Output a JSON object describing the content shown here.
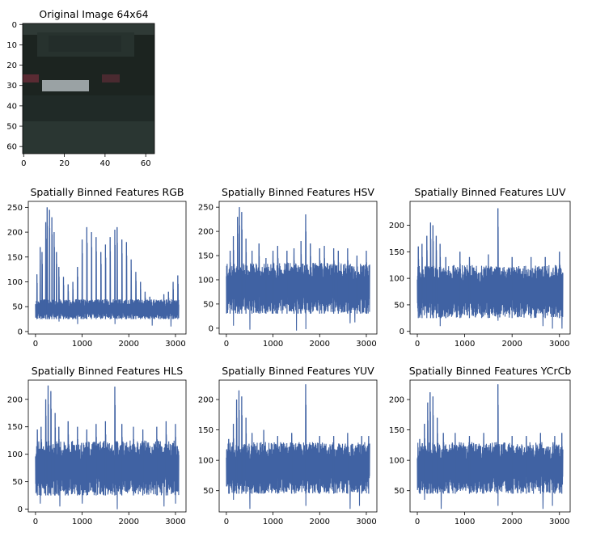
{
  "figure": {
    "image_panel": {
      "title": "Original Image 64x64",
      "xticks": [
        "0",
        "20",
        "40",
        "60"
      ],
      "yticks": [
        "0",
        "10",
        "20",
        "30",
        "40",
        "50",
        "60"
      ],
      "colors": {
        "dark": "#1c2420",
        "mid": "#2a3632",
        "light_plate": "#9aa2a4",
        "tail": "#5a2b33"
      }
    },
    "series_color": "#4062a3"
  },
  "chart_data": [
    {
      "type": "line",
      "title": "Spatially Binned Features RGB",
      "x_range": [
        0,
        3072
      ],
      "ylim": [
        -5,
        262
      ],
      "xticks": [
        0,
        1000,
        2000,
        3000
      ],
      "yticks": [
        0,
        50,
        100,
        150,
        200,
        250
      ],
      "band": {
        "low": 25,
        "high": 65
      },
      "spikes": [
        {
          "x": 30,
          "y": 115
        },
        {
          "x": 100,
          "y": 170
        },
        {
          "x": 140,
          "y": 160
        },
        {
          "x": 220,
          "y": 220
        },
        {
          "x": 250,
          "y": 250
        },
        {
          "x": 300,
          "y": 245
        },
        {
          "x": 350,
          "y": 230
        },
        {
          "x": 400,
          "y": 200
        },
        {
          "x": 450,
          "y": 160
        },
        {
          "x": 500,
          "y": 130
        },
        {
          "x": 600,
          "y": 110
        },
        {
          "x": 700,
          "y": 95
        },
        {
          "x": 800,
          "y": 100
        },
        {
          "x": 900,
          "y": 130
        },
        {
          "x": 1000,
          "y": 185
        },
        {
          "x": 1100,
          "y": 210
        },
        {
          "x": 1200,
          "y": 200
        },
        {
          "x": 1300,
          "y": 190
        },
        {
          "x": 1400,
          "y": 160
        },
        {
          "x": 1500,
          "y": 175
        },
        {
          "x": 1600,
          "y": 190
        },
        {
          "x": 1700,
          "y": 205
        },
        {
          "x": 1750,
          "y": 210
        },
        {
          "x": 1850,
          "y": 185
        },
        {
          "x": 1950,
          "y": 180
        },
        {
          "x": 2050,
          "y": 145
        },
        {
          "x": 2150,
          "y": 120
        },
        {
          "x": 2250,
          "y": 100
        },
        {
          "x": 2350,
          "y": 80
        },
        {
          "x": 2450,
          "y": 70
        },
        {
          "x": 2550,
          "y": 55
        },
        {
          "x": 2650,
          "y": 60
        },
        {
          "x": 2750,
          "y": 75
        },
        {
          "x": 2850,
          "y": 80
        },
        {
          "x": 2950,
          "y": 100
        },
        {
          "x": 3050,
          "y": 113
        }
      ],
      "dips": [
        {
          "x": 60,
          "y": 50
        },
        {
          "x": 500,
          "y": 20
        },
        {
          "x": 900,
          "y": 15
        },
        {
          "x": 1700,
          "y": 15
        },
        {
          "x": 2500,
          "y": 12
        },
        {
          "x": 2900,
          "y": 10
        }
      ]
    },
    {
      "type": "line",
      "title": "Spatially Binned Features HSV",
      "x_range": [
        0,
        3072
      ],
      "ylim": [
        -12,
        262
      ],
      "xticks": [
        0,
        1000,
        2000,
        3000
      ],
      "yticks": [
        0,
        50,
        100,
        150,
        200,
        250
      ],
      "band": {
        "low": 30,
        "high": 135
      },
      "spikes": [
        {
          "x": 80,
          "y": 160
        },
        {
          "x": 150,
          "y": 190
        },
        {
          "x": 240,
          "y": 230
        },
        {
          "x": 280,
          "y": 250
        },
        {
          "x": 330,
          "y": 240
        },
        {
          "x": 420,
          "y": 185
        },
        {
          "x": 550,
          "y": 160
        },
        {
          "x": 700,
          "y": 175
        },
        {
          "x": 850,
          "y": 145
        },
        {
          "x": 1000,
          "y": 160
        },
        {
          "x": 1100,
          "y": 170
        },
        {
          "x": 1300,
          "y": 160
        },
        {
          "x": 1450,
          "y": 165
        },
        {
          "x": 1600,
          "y": 180
        },
        {
          "x": 1700,
          "y": 235
        },
        {
          "x": 1800,
          "y": 175
        },
        {
          "x": 2000,
          "y": 165
        },
        {
          "x": 2100,
          "y": 170
        },
        {
          "x": 2300,
          "y": 165
        },
        {
          "x": 2400,
          "y": 160
        },
        {
          "x": 2600,
          "y": 165
        },
        {
          "x": 2800,
          "y": 150
        },
        {
          "x": 3000,
          "y": 160
        }
      ],
      "dips": [
        {
          "x": 150,
          "y": 5
        },
        {
          "x": 500,
          "y": -3
        },
        {
          "x": 1500,
          "y": -5
        },
        {
          "x": 1700,
          "y": -2
        },
        {
          "x": 2650,
          "y": 10
        },
        {
          "x": 2750,
          "y": 12
        }
      ]
    },
    {
      "type": "line",
      "title": "Spatially Binned Features LUV",
      "x_range": [
        0,
        3072
      ],
      "ylim": [
        -5,
        245
      ],
      "xticks": [
        0,
        1000,
        2000,
        3000
      ],
      "yticks": [
        0,
        50,
        100,
        150,
        200
      ],
      "band": {
        "low": 25,
        "high": 125
      },
      "spikes": [
        {
          "x": 20,
          "y": 160
        },
        {
          "x": 100,
          "y": 165
        },
        {
          "x": 200,
          "y": 180
        },
        {
          "x": 280,
          "y": 205
        },
        {
          "x": 330,
          "y": 200
        },
        {
          "x": 400,
          "y": 180
        },
        {
          "x": 480,
          "y": 165
        },
        {
          "x": 600,
          "y": 140
        },
        {
          "x": 900,
          "y": 150
        },
        {
          "x": 1100,
          "y": 140
        },
        {
          "x": 1500,
          "y": 145
        },
        {
          "x": 1700,
          "y": 232
        },
        {
          "x": 2000,
          "y": 140
        },
        {
          "x": 2400,
          "y": 140
        },
        {
          "x": 2700,
          "y": 140
        },
        {
          "x": 3000,
          "y": 150
        }
      ],
      "dips": [
        {
          "x": 120,
          "y": 40
        },
        {
          "x": 480,
          "y": 10
        },
        {
          "x": 1700,
          "y": 20
        },
        {
          "x": 2650,
          "y": 10
        },
        {
          "x": 2850,
          "y": 5
        },
        {
          "x": 3050,
          "y": 5
        }
      ]
    },
    {
      "type": "line",
      "title": "Spatially Binned Features HLS",
      "x_range": [
        0,
        3072
      ],
      "ylim": [
        -5,
        235
      ],
      "xticks": [
        0,
        1000,
        2000,
        3000
      ],
      "yticks": [
        0,
        50,
        100,
        150,
        200
      ],
      "band": {
        "low": 25,
        "high": 125
      },
      "spikes": [
        {
          "x": 40,
          "y": 145
        },
        {
          "x": 120,
          "y": 150
        },
        {
          "x": 220,
          "y": 200
        },
        {
          "x": 270,
          "y": 225
        },
        {
          "x": 330,
          "y": 215
        },
        {
          "x": 420,
          "y": 175
        },
        {
          "x": 500,
          "y": 150
        },
        {
          "x": 700,
          "y": 160
        },
        {
          "x": 900,
          "y": 150
        },
        {
          "x": 1100,
          "y": 145
        },
        {
          "x": 1300,
          "y": 155
        },
        {
          "x": 1500,
          "y": 160
        },
        {
          "x": 1700,
          "y": 223
        },
        {
          "x": 1850,
          "y": 155
        },
        {
          "x": 2100,
          "y": 150
        },
        {
          "x": 2300,
          "y": 145
        },
        {
          "x": 2600,
          "y": 150
        },
        {
          "x": 2800,
          "y": 160
        },
        {
          "x": 3000,
          "y": 155
        }
      ],
      "dips": [
        {
          "x": 100,
          "y": 10
        },
        {
          "x": 520,
          "y": 5
        },
        {
          "x": 1000,
          "y": 10
        },
        {
          "x": 1750,
          "y": 0
        },
        {
          "x": 2750,
          "y": 5
        },
        {
          "x": 3000,
          "y": 10
        }
      ]
    },
    {
      "type": "line",
      "title": "Spatially Binned Features YUV",
      "x_range": [
        0,
        3072
      ],
      "ylim": [
        15,
        232
      ],
      "xticks": [
        0,
        1000,
        2000,
        3000
      ],
      "yticks": [
        50,
        100,
        150,
        200
      ],
      "band": {
        "low": 45,
        "high": 130
      },
      "spikes": [
        {
          "x": 50,
          "y": 135
        },
        {
          "x": 150,
          "y": 160
        },
        {
          "x": 220,
          "y": 200
        },
        {
          "x": 270,
          "y": 215
        },
        {
          "x": 330,
          "y": 205
        },
        {
          "x": 420,
          "y": 170
        },
        {
          "x": 550,
          "y": 145
        },
        {
          "x": 800,
          "y": 150
        },
        {
          "x": 1100,
          "y": 140
        },
        {
          "x": 1400,
          "y": 145
        },
        {
          "x": 1700,
          "y": 225
        },
        {
          "x": 2000,
          "y": 140
        },
        {
          "x": 2300,
          "y": 140
        },
        {
          "x": 2600,
          "y": 145
        },
        {
          "x": 2900,
          "y": 140
        },
        {
          "x": 3050,
          "y": 140
        }
      ],
      "dips": [
        {
          "x": 60,
          "y": 45
        },
        {
          "x": 150,
          "y": 35
        },
        {
          "x": 500,
          "y": 20
        },
        {
          "x": 1700,
          "y": 25
        },
        {
          "x": 2650,
          "y": 20
        },
        {
          "x": 2850,
          "y": 25
        }
      ]
    },
    {
      "type": "line",
      "title": "Spatially Binned Features YCrCb",
      "x_range": [
        0,
        3072
      ],
      "ylim": [
        15,
        232
      ],
      "xticks": [
        0,
        1000,
        2000,
        3000
      ],
      "yticks": [
        50,
        100,
        150,
        200
      ],
      "band": {
        "low": 45,
        "high": 130
      },
      "spikes": [
        {
          "x": 50,
          "y": 135
        },
        {
          "x": 150,
          "y": 160
        },
        {
          "x": 220,
          "y": 195
        },
        {
          "x": 270,
          "y": 212
        },
        {
          "x": 330,
          "y": 205
        },
        {
          "x": 420,
          "y": 170
        },
        {
          "x": 550,
          "y": 145
        },
        {
          "x": 800,
          "y": 145
        },
        {
          "x": 1100,
          "y": 140
        },
        {
          "x": 1400,
          "y": 145
        },
        {
          "x": 1700,
          "y": 225
        },
        {
          "x": 2000,
          "y": 140
        },
        {
          "x": 2300,
          "y": 140
        },
        {
          "x": 2600,
          "y": 145
        },
        {
          "x": 2900,
          "y": 140
        },
        {
          "x": 3050,
          "y": 145
        }
      ],
      "dips": [
        {
          "x": 60,
          "y": 45
        },
        {
          "x": 150,
          "y": 35
        },
        {
          "x": 500,
          "y": 20
        },
        {
          "x": 1700,
          "y": 25
        },
        {
          "x": 2650,
          "y": 20
        },
        {
          "x": 2850,
          "y": 25
        }
      ]
    }
  ]
}
